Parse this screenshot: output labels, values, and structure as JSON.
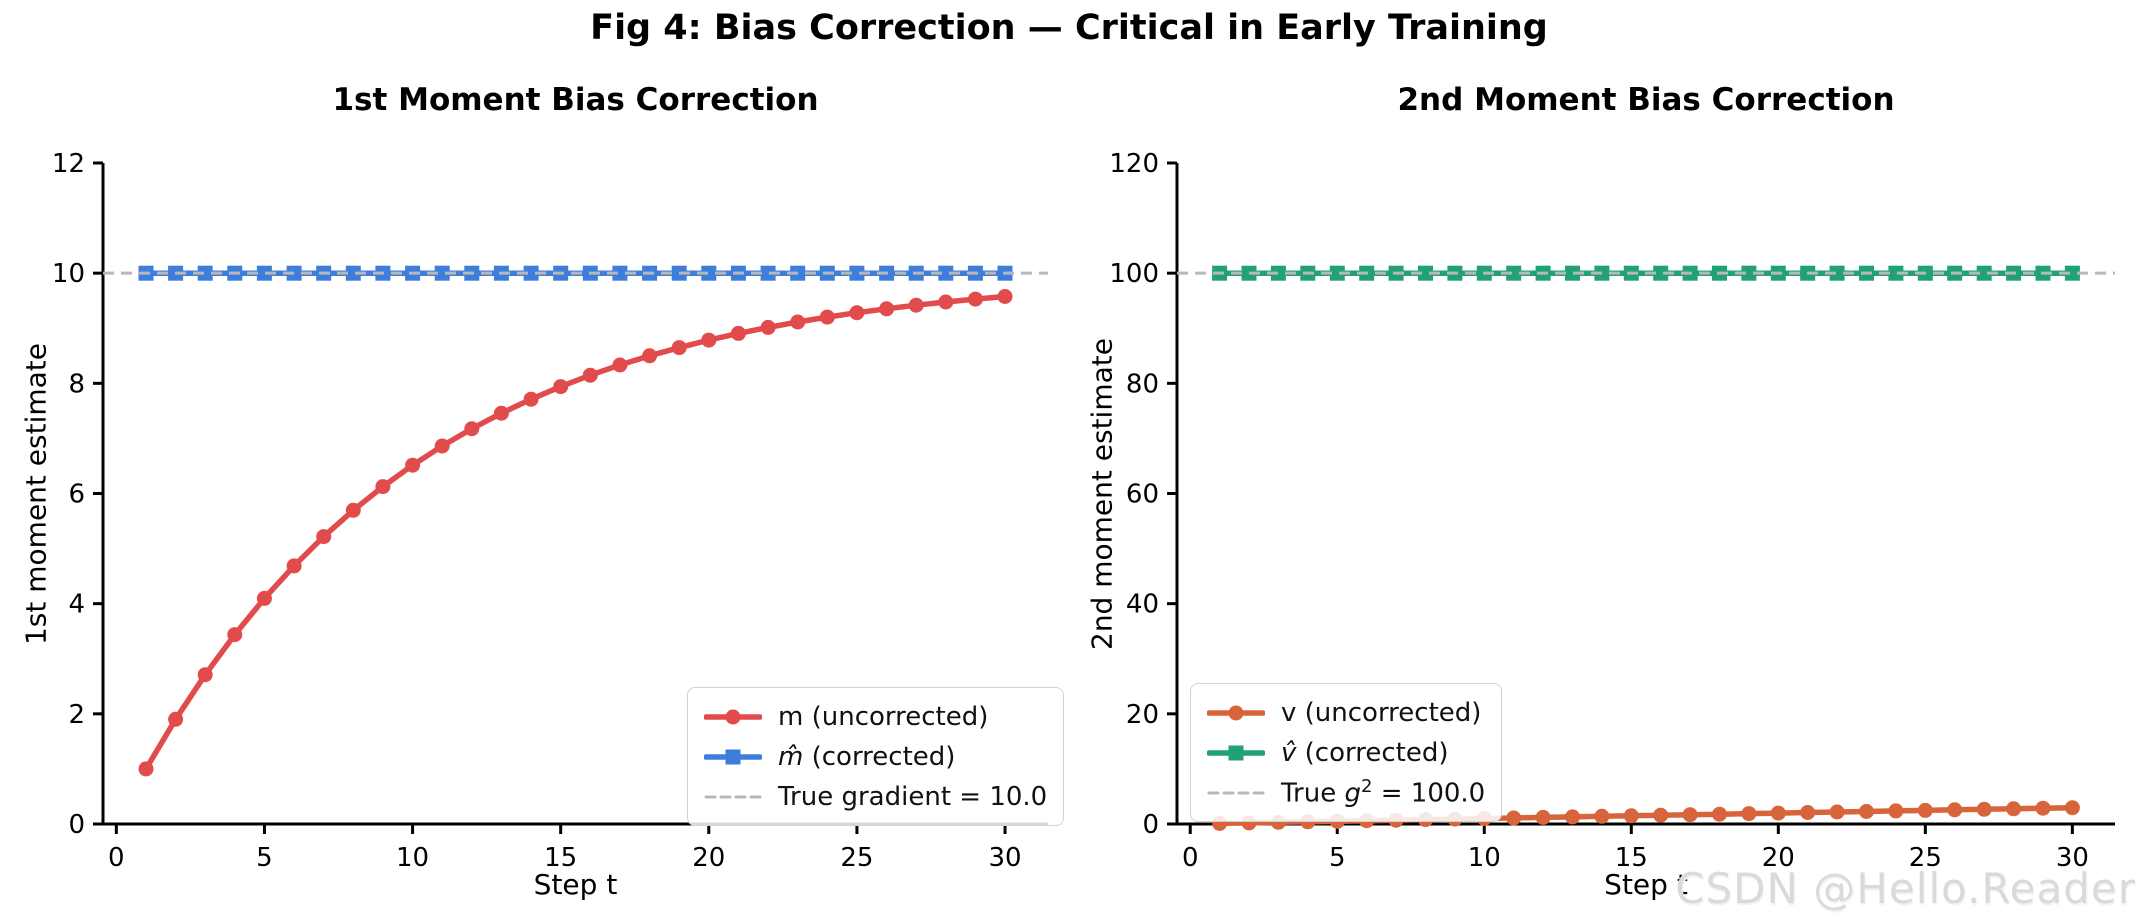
{
  "figure": {
    "title": "Fig 4: Bias Correction — Critical in Early Training"
  },
  "watermark": {
    "text": "CSDN @Hello.Reader"
  },
  "colors": {
    "red": "#e24b4b",
    "blue": "#3d7edd",
    "green": "#21a179",
    "orange": "#d8643c",
    "dashed_gray": "#b8b8b8",
    "spine": "#000000",
    "watermark_gray": "#dadada"
  },
  "chart_data": [
    {
      "type": "line",
      "title": "1st Moment Bias Correction",
      "xlabel": "Step t",
      "ylabel": "1st moment estimate",
      "xlim": [
        -0.45,
        31.45
      ],
      "ylim": [
        0,
        12
      ],
      "xticks": [
        0,
        5,
        10,
        15,
        20,
        25,
        30
      ],
      "yticks": [
        0,
        2,
        4,
        6,
        8,
        10,
        12
      ],
      "grid": false,
      "legend_position": "lower right",
      "x": [
        1,
        2,
        3,
        4,
        5,
        6,
        7,
        8,
        9,
        10,
        11,
        12,
        13,
        14,
        15,
        16,
        17,
        18,
        19,
        20,
        21,
        22,
        23,
        24,
        25,
        26,
        27,
        28,
        29,
        30
      ],
      "series": [
        {
          "key": "m-uncorrected",
          "name": "m (uncorrected)",
          "type": "line",
          "marker": "circle",
          "color": "#e24b4b",
          "values": [
            1.0,
            1.9,
            2.71,
            3.439,
            4.095,
            4.686,
            5.217,
            5.695,
            6.126,
            6.513,
            6.862,
            7.176,
            7.458,
            7.712,
            7.941,
            8.147,
            8.332,
            8.499,
            8.649,
            8.784,
            8.906,
            9.015,
            9.114,
            9.202,
            9.282,
            9.354,
            9.418,
            9.477,
            9.529,
            9.576
          ]
        },
        {
          "key": "m-corrected",
          "name": "m̂ (corrected)",
          "type": "line",
          "marker": "square",
          "color": "#3d7edd",
          "constant": 10
        },
        {
          "key": "true-gradient",
          "name": "True gradient = 10.0",
          "type": "hline",
          "y": 10,
          "linestyle": "dashed",
          "color": "#b8b8b8"
        }
      ],
      "legend": [
        {
          "marker": "circle",
          "color": "#e24b4b",
          "parts": [
            {
              "text": "m (uncorrected)"
            }
          ]
        },
        {
          "marker": "square",
          "color": "#3d7edd",
          "parts": [
            {
              "text": "m̂",
              "italic": true
            },
            {
              "text": " (corrected)"
            }
          ]
        },
        {
          "marker": "dash",
          "color": "#b8b8b8",
          "parts": [
            {
              "text": "True gradient = 10.0"
            }
          ]
        }
      ]
    },
    {
      "type": "line",
      "title": "2nd Moment Bias Correction",
      "xlabel": "Step t",
      "ylabel": "2nd moment estimate",
      "xlim": [
        -0.45,
        31.45
      ],
      "ylim": [
        0,
        120
      ],
      "xticks": [
        0,
        5,
        10,
        15,
        20,
        25,
        30
      ],
      "yticks": [
        0,
        20,
        40,
        60,
        80,
        100,
        120
      ],
      "grid": false,
      "legend_position": "lower left",
      "x": [
        1,
        2,
        3,
        4,
        5,
        6,
        7,
        8,
        9,
        10,
        11,
        12,
        13,
        14,
        15,
        16,
        17,
        18,
        19,
        20,
        21,
        22,
        23,
        24,
        25,
        26,
        27,
        28,
        29,
        30
      ],
      "series": [
        {
          "key": "v-uncorrected",
          "name": "v (uncorrected)",
          "type": "line",
          "marker": "circle",
          "color": "#d8643c",
          "values": [
            0.1,
            0.2,
            0.3,
            0.399,
            0.499,
            0.599,
            0.698,
            0.797,
            0.896,
            0.996,
            1.095,
            1.194,
            1.292,
            1.391,
            1.49,
            1.589,
            1.687,
            1.786,
            1.884,
            1.982,
            2.081,
            2.179,
            2.277,
            2.375,
            2.472,
            2.57,
            2.668,
            2.765,
            2.863,
            2.96
          ]
        },
        {
          "key": "v-corrected",
          "name": "v̂ (corrected)",
          "type": "line",
          "marker": "square",
          "color": "#21a179",
          "constant": 100
        },
        {
          "key": "true-g-squared",
          "name": "True g² = 100.0",
          "type": "hline",
          "y": 100,
          "linestyle": "dashed",
          "color": "#b8b8b8"
        }
      ],
      "legend": [
        {
          "marker": "circle",
          "color": "#d8643c",
          "parts": [
            {
              "text": "v (uncorrected)"
            }
          ]
        },
        {
          "marker": "square",
          "color": "#21a179",
          "parts": [
            {
              "text": "v̂",
              "italic": true
            },
            {
              "text": " (corrected)"
            }
          ]
        },
        {
          "marker": "dash",
          "color": "#b8b8b8",
          "parts": [
            {
              "text": "True "
            },
            {
              "text": "g",
              "italic": true
            },
            {
              "text": "2",
              "sup": true
            },
            {
              "text": " = 100.0"
            }
          ]
        }
      ]
    }
  ]
}
